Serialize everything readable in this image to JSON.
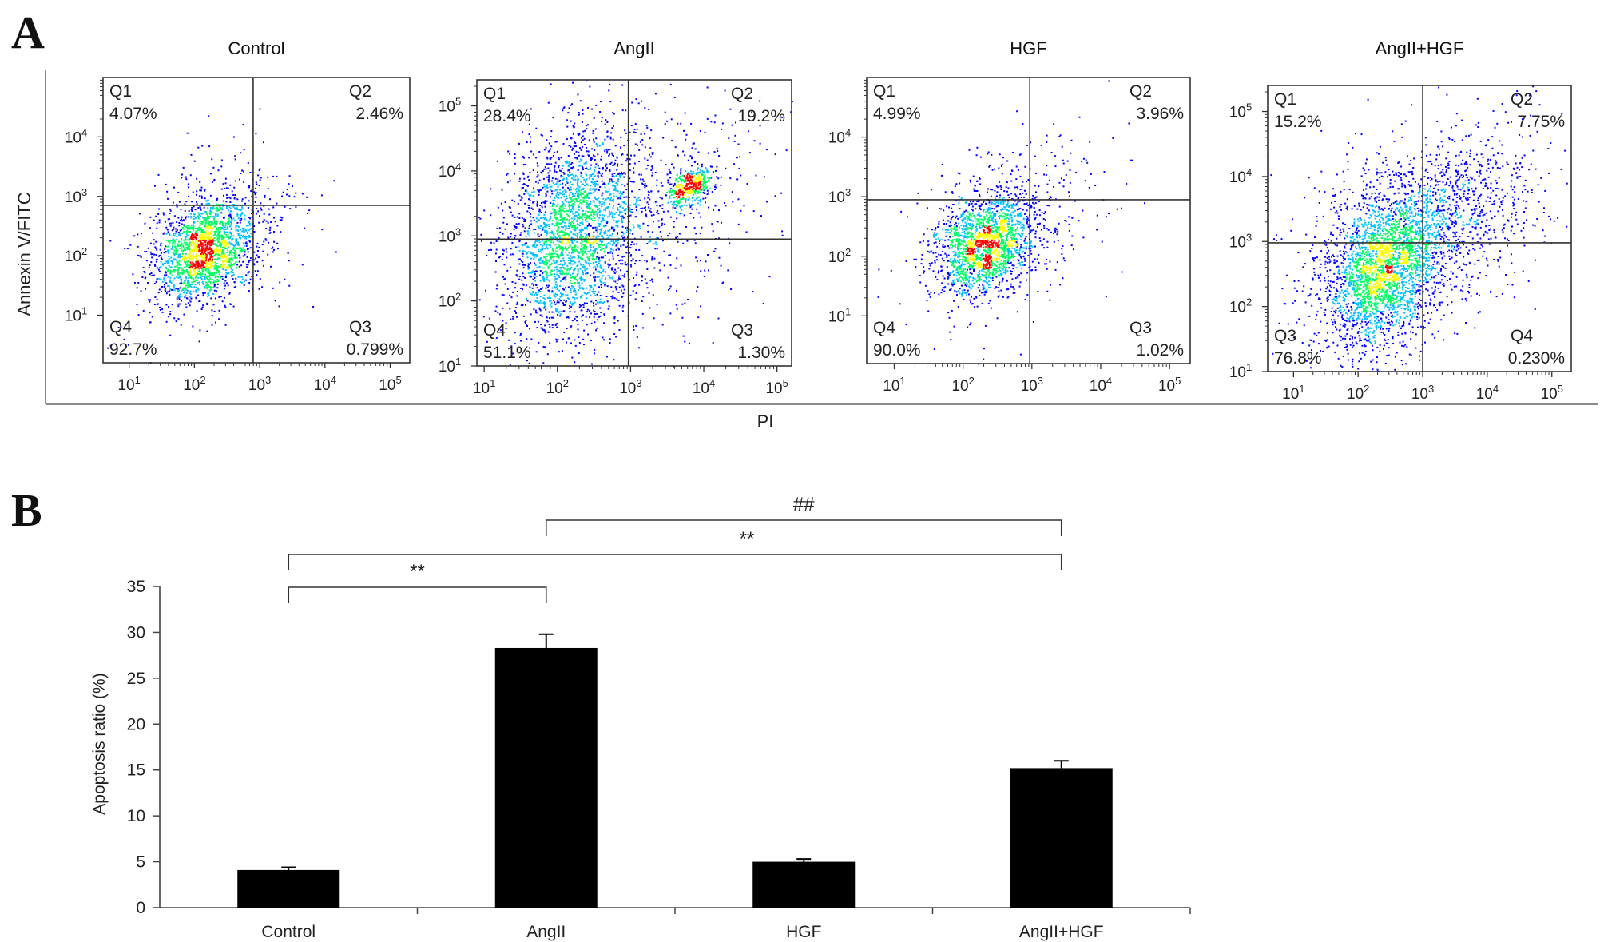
{
  "panel_labels": {
    "a": "A",
    "b": "B"
  },
  "chart_data": [
    {
      "type": "scatter",
      "subtype": "flow-cytometry-density",
      "ylabel": "Annexin V/FITC",
      "xlabel": "PI",
      "colors": [
        "#0000ff",
        "#00c0ff",
        "#00ff60",
        "#ffff00",
        "#ff0000"
      ],
      "panels": [
        {
          "title": "Control",
          "x_ticks": [
            "10^1",
            "10^2",
            "10^3",
            "10^4",
            "10^5"
          ],
          "y_ticks": [
            "10^1",
            "10^2",
            "10^3",
            "10^4"
          ],
          "x_range_log": [
            0.6,
            5.3
          ],
          "y_range_log": [
            0.2,
            5.0
          ],
          "gate_log": [
            2.9,
            2.85
          ],
          "quadrants": [
            {
              "name": "Q1",
              "value": "4.07%"
            },
            {
              "name": "Q2",
              "value": "2.46%"
            },
            {
              "name": "Q4",
              "value": "92.7%"
            },
            {
              "name": "Q3",
              "value": "0.799%"
            }
          ],
          "populations": [
            {
              "cx": 2.15,
              "cy": 2.1,
              "sx": 0.38,
              "sy": 0.4,
              "n": 1700
            },
            {
              "cx": 2.3,
              "cy": 2.3,
              "sx": 0.7,
              "sy": 0.75,
              "n": 450
            }
          ]
        },
        {
          "title": "AngII",
          "x_ticks": [
            "10^1",
            "10^2",
            "10^3",
            "10^4",
            "10^5"
          ],
          "y_ticks": [
            "10^1",
            "10^2",
            "10^3",
            "10^4",
            "10^5"
          ],
          "x_range_log": [
            0.9,
            5.2
          ],
          "y_range_log": [
            1.0,
            5.4
          ],
          "gate_log": [
            2.97,
            2.95
          ],
          "quadrants": [
            {
              "name": "Q1",
              "value": "28.4%"
            },
            {
              "name": "Q2",
              "value": "19.2%"
            },
            {
              "name": "Q4",
              "value": "51.1%"
            },
            {
              "name": "Q3",
              "value": "1.30%"
            }
          ],
          "populations": [
            {
              "cx": 2.2,
              "cy": 3.1,
              "sx": 0.45,
              "sy": 0.75,
              "n": 2400
            },
            {
              "cx": 3.8,
              "cy": 3.75,
              "sx": 0.15,
              "sy": 0.15,
              "n": 420
            },
            {
              "cx": 3.0,
              "cy": 3.2,
              "sx": 0.9,
              "sy": 0.9,
              "n": 700
            }
          ]
        },
        {
          "title": "HGF",
          "x_ticks": [
            "10^1",
            "10^2",
            "10^3",
            "10^4",
            "10^5"
          ],
          "y_ticks": [
            "10^1",
            "10^2",
            "10^3",
            "10^4"
          ],
          "x_range_log": [
            0.6,
            5.3
          ],
          "y_range_log": [
            0.2,
            5.0
          ],
          "gate_log": [
            2.97,
            2.95
          ],
          "quadrants": [
            {
              "name": "Q1",
              "value": "4.99%"
            },
            {
              "name": "Q2",
              "value": "3.96%"
            },
            {
              "name": "Q4",
              "value": "90.0%"
            },
            {
              "name": "Q3",
              "value": "1.02%"
            }
          ],
          "populations": [
            {
              "cx": 2.3,
              "cy": 2.2,
              "sx": 0.35,
              "sy": 0.38,
              "n": 1700
            },
            {
              "cx": 2.6,
              "cy": 2.5,
              "sx": 0.75,
              "sy": 0.75,
              "n": 450
            }
          ]
        },
        {
          "title": "AngII+HGF",
          "x_ticks": [
            "10^1",
            "10^2",
            "10^3",
            "10^4",
            "10^5"
          ],
          "y_ticks": [
            "10^1",
            "10^2",
            "10^3",
            "10^4",
            "10^5"
          ],
          "x_range_log": [
            0.6,
            5.3
          ],
          "y_range_log": [
            1.0,
            5.4
          ],
          "gate_log": [
            3.0,
            2.98
          ],
          "quadrants": [
            {
              "name": "Q1",
              "value": "15.2%"
            },
            {
              "name": "Q2",
              "value": "7.75%"
            },
            {
              "name": "Q3",
              "value": "76.8%"
            },
            {
              "name": "Q4",
              "value": "0.230%"
            }
          ],
          "populations": [
            {
              "cx": 2.35,
              "cy": 2.5,
              "sx": 0.45,
              "sy": 0.55,
              "n": 2200
            },
            {
              "cx": 3.3,
              "cy": 3.4,
              "sx": 0.8,
              "sy": 0.6,
              "n": 1100
            },
            {
              "cx": 2.4,
              "cy": 2.8,
              "sx": 0.9,
              "sy": 0.9,
              "n": 500
            }
          ]
        }
      ]
    },
    {
      "type": "bar",
      "categories": [
        "Control",
        "AngII",
        "HGF",
        "AngII+HGF"
      ],
      "values": [
        4.1,
        28.3,
        5.0,
        15.2
      ],
      "errors": [
        0.3,
        1.5,
        0.3,
        0.8
      ],
      "ylabel": "Apoptosis ratio (%)",
      "ylim": [
        0,
        35
      ],
      "yticks": [
        0,
        5,
        10,
        15,
        20,
        25,
        30,
        35
      ],
      "bar_color": "#000000",
      "comparisons": [
        {
          "from": 0,
          "to": 1,
          "label": "**"
        },
        {
          "from": 0,
          "to": 3,
          "label": "**"
        },
        {
          "from": 1,
          "to": 3,
          "label": "##"
        }
      ]
    }
  ]
}
